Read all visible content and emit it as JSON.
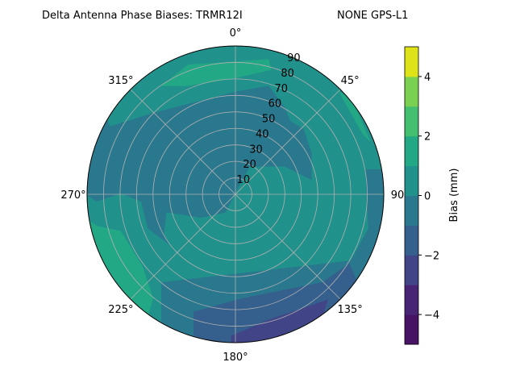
{
  "chart_data": {
    "type": "contour",
    "projection": "polar",
    "title_left": "Delta Antenna Phase Biases: TRMR12I",
    "title_right": "NONE GPS-L1",
    "theta_ticks": [
      "0°",
      "45°",
      "90",
      "135°",
      "180°",
      "225°",
      "270°",
      "315°"
    ],
    "r_ticks": [
      "10",
      "20",
      "30",
      "40",
      "50",
      "60",
      "70",
      "80",
      "90"
    ],
    "rlim": [
      0,
      90
    ],
    "theta_zero": "top",
    "theta_direction": "clockwise",
    "grid": true,
    "colorbar": {
      "label": "Bias (mm)",
      "levels": [
        -5,
        -4,
        -3,
        -2,
        -1,
        0,
        1,
        2,
        3,
        4,
        5
      ],
      "tick_labels": [
        "−4",
        "−2",
        "0",
        "2",
        "4"
      ],
      "ticks": [
        -4,
        -2,
        0,
        2,
        4
      ],
      "colors": [
        "#471365",
        "#482475",
        "#414487",
        "#355f8d",
        "#2a788e",
        "#21918c",
        "#22a884",
        "#44bf70",
        "#7ad151",
        "#dde318"
      ]
    },
    "regions": [
      {
        "level_range": [
          0,
          1
        ],
        "location": "background / most of field"
      },
      {
        "level_range": [
          -1,
          0
        ],
        "location": "band across center and upper-left, lower-right rim"
      },
      {
        "level_range": [
          1,
          2
        ],
        "location": "north rim near 345°-15°, west rim near 225°-260°"
      },
      {
        "level_range": [
          -2,
          -1
        ],
        "location": "south rim 150°-200°"
      },
      {
        "level_range": [
          -3,
          -2
        ],
        "location": "south-southeast rim 150°-180°"
      },
      {
        "level_range": [
          2,
          3
        ],
        "location": "small spot at west-southwest rim"
      }
    ]
  }
}
